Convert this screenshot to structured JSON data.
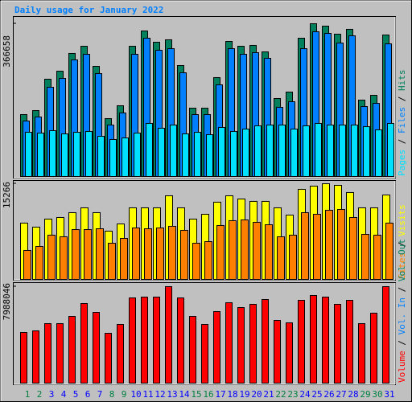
{
  "legend_separator": " / ",
  "chart_data": [
    {
      "type": "bar",
      "title": "Daily usage for January 2022",
      "ylim": [
        0,
        366658
      ],
      "yticks": [
        366658
      ],
      "series": [
        {
          "name": "Hits",
          "color": "#00805c",
          "values": [
            148600,
            158200,
            233500,
            252800,
            295300,
            312600,
            264400,
            138900,
            169800,
            312600,
            349300,
            322300,
            328100,
            266300,
            164000,
            164000,
            237400,
            324200,
            312600,
            314600,
            299100,
            187200,
            202600,
            331900,
            366658,
            360900,
            341600,
            353200,
            183300,
            194900,
            339600
          ]
        },
        {
          "name": "Files",
          "color": "#0080ff",
          "values": [
            133200,
            142800,
            214200,
            235400,
            279800,
            293300,
            247000,
            123500,
            152500,
            293300,
            331900,
            303000,
            306800,
            248900,
            148600,
            148600,
            220000,
            306800,
            293300,
            297200,
            283700,
            166000,
            179500,
            306800,
            347400,
            343500,
            320300,
            337700,
            167900,
            175600,
            318400
          ]
        },
        {
          "name": "Pages",
          "color": "#00e0ff",
          "values": [
            106100,
            104200,
            110000,
            102300,
            106100,
            108100,
            96500,
            88800,
            92600,
            104200,
            127400,
            115800,
            123500,
            102300,
            106100,
            100300,
            117700,
            108100,
            113900,
            121600,
            123500,
            123500,
            113900,
            121600,
            127400,
            123500,
            123500,
            123500,
            119600,
            111900,
            127400
          ]
        }
      ]
    },
    {
      "type": "bar",
      "ylim": [
        0,
        15266
      ],
      "yticks": [
        15266
      ],
      "series": [
        {
          "name": "Visits",
          "color": "#ffff00",
          "values": [
            8980,
            8340,
            9620,
            9880,
            10650,
            11420,
            10650,
            7700,
            8850,
            11420,
            11420,
            11420,
            13340,
            11420,
            9620,
            10390,
            12320,
            13340,
            12830,
            12450,
            12450,
            11420,
            10260,
            14370,
            14880,
            15266,
            15010,
            13860,
            11420,
            11420,
            13470
          ]
        },
        {
          "name": "Sites",
          "color": "#ff8000",
          "values": [
            4620,
            5260,
            7060,
            6800,
            7950,
            7950,
            8080,
            5770,
            6540,
            8210,
            8080,
            8210,
            8470,
            7830,
            5770,
            6030,
            8600,
            9370,
            9490,
            9110,
            8720,
            6800,
            7060,
            10650,
            10390,
            11030,
            11160,
            9880,
            7180,
            7060,
            8980
          ]
        }
      ]
    },
    {
      "type": "bar",
      "ylim": [
        0,
        7988046
      ],
      "yticks": [
        7988046
      ],
      "categories": [
        "1",
        "2",
        "3",
        "4",
        "5",
        "6",
        "7",
        "8",
        "9",
        "10",
        "11",
        "12",
        "13",
        "14",
        "15",
        "16",
        "17",
        "18",
        "19",
        "20",
        "21",
        "22",
        "23",
        "24",
        "25",
        "26",
        "27",
        "28",
        "29",
        "30",
        "31"
      ],
      "category_colors": [
        "#008040",
        "#008040",
        "#0000ff",
        "#0000ff",
        "#0000ff",
        "#0000ff",
        "#0000ff",
        "#008040",
        "#008040",
        "#0000ff",
        "#0000ff",
        "#0000ff",
        "#0000ff",
        "#0000ff",
        "#008040",
        "#008040",
        "#0000ff",
        "#0000ff",
        "#0000ff",
        "#0000ff",
        "#0000ff",
        "#008040",
        "#008040",
        "#0000ff",
        "#0000ff",
        "#0000ff",
        "#0000ff",
        "#0000ff",
        "#008040",
        "#008040",
        "#0000ff"
      ],
      "series": [
        {
          "name": "Volume",
          "color": "#ff0000",
          "values": [
            4194000,
            4327000,
            4926000,
            4926000,
            5525000,
            6590000,
            5858000,
            4127000,
            4859000,
            7056000,
            7123000,
            7123000,
            7988046,
            7056000,
            5525000,
            4859000,
            5924000,
            6657000,
            6257000,
            6524000,
            6923000,
            5192000,
            4993000,
            6856000,
            7256000,
            7123000,
            6524000,
            6856000,
            4926000,
            5791000,
            7988046
          ]
        }
      ],
      "legend_only": [
        {
          "name": "Vol. In",
          "color": "#0080ff"
        },
        {
          "name": "Vol. Out",
          "color": "#00805c"
        }
      ]
    }
  ]
}
